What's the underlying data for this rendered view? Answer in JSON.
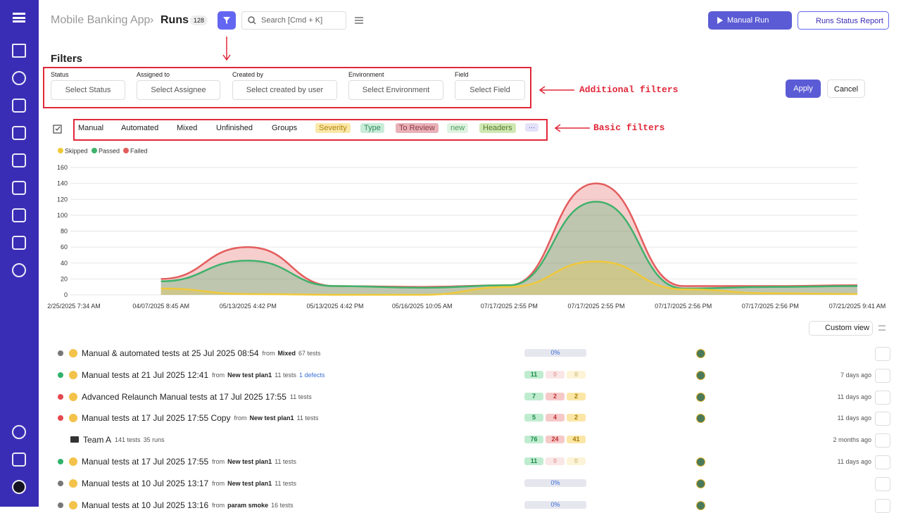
{
  "header": {
    "breadcrumb": "Mobile Banking App",
    "separator": "›",
    "page": "Runs",
    "count": 128,
    "search_placeholder": "Search [Cmd + K]",
    "manual_run": "Manual Run",
    "status_report": "Runs Status Report"
  },
  "filters": {
    "title": "Filters",
    "fields": [
      {
        "label": "Status",
        "placeholder": "Select Status"
      },
      {
        "label": "Assigned to",
        "placeholder": "Select Assignee"
      },
      {
        "label": "Created by",
        "placeholder": "Select created by user"
      },
      {
        "label": "Environment",
        "placeholder": "Select Environment"
      },
      {
        "label": "Field",
        "placeholder": "Select Field"
      }
    ],
    "apply": "Apply",
    "cancel": "Cancel"
  },
  "annotations": {
    "additional": "Additional filters",
    "basic": "Basic filters"
  },
  "basic_filters": {
    "tabs": [
      "Manual",
      "Automated",
      "Mixed",
      "Unfinished",
      "Groups"
    ],
    "tags": [
      "Severity",
      "Type",
      "To Review",
      "new",
      "Headers"
    ],
    "more": "···"
  },
  "chart_data": {
    "type": "area",
    "categories": [
      "2/25/2025 7:34 AM",
      "04/07/2025 8:45 AM",
      "05/13/2025 4:42 PM",
      "05/13/2025 4:42 PM",
      "05/16/2025 10:05 AM",
      "07/17/2025 2:55 PM",
      "07/17/2025 2:55 PM",
      "07/17/2025 2:56 PM",
      "07/17/2025 2:56 PM",
      "07/21/2025 9:41 AM"
    ],
    "series": [
      {
        "name": "Skipped",
        "color": "#f0c93a",
        "values": [
          null,
          8,
          1,
          0,
          0,
          10,
          42,
          7,
          2,
          1
        ]
      },
      {
        "name": "Passed",
        "color": "#3fb26b",
        "values": [
          null,
          17,
          43,
          11,
          9,
          12,
          117,
          8,
          10,
          11
        ]
      },
      {
        "name": "Failed",
        "color": "#e35d5d",
        "values": [
          null,
          20,
          60,
          11,
          10,
          12,
          140,
          11,
          11,
          12
        ]
      }
    ],
    "ylim": [
      0,
      160
    ],
    "yticks": [
      0,
      20,
      40,
      60,
      80,
      100,
      120,
      140,
      160
    ],
    "grid": true,
    "legend": "top-left"
  },
  "runs": {
    "custom_view": "Custom view",
    "rows": [
      {
        "title": "Manual & automated tests at 25 Jul 2025 08:54",
        "from": "from",
        "source": "Mixed",
        "tests": "67 tests",
        "progress": "0%"
      },
      {
        "title": "Manual tests at 21 Jul 2025 12:41",
        "from": "from",
        "source": "New test plan1",
        "tests": "11 tests",
        "defects": "1 defects",
        "counts": [
          11,
          0,
          0
        ],
        "time": "7 days ago"
      },
      {
        "title": "Advanced Relaunch Manual tests at 17 Jul 2025 17:55",
        "tests": "11 tests",
        "counts": [
          7,
          2,
          2
        ],
        "time": "11 days ago"
      },
      {
        "title": "Manual tests at 17 Jul 2025 17:55 Copy",
        "from": "from",
        "source": "New test plan1",
        "tests": "11 tests",
        "counts": [
          5,
          4,
          2
        ],
        "time": "11 days ago"
      },
      {
        "title": "Team A",
        "tests": "141 tests",
        "runs": "35 runs",
        "counts": [
          76,
          24,
          41
        ],
        "time": "2 months ago"
      },
      {
        "title": "Manual tests at 17 Jul 2025 17:55",
        "from": "from",
        "source": "New test plan1",
        "tests": "11 tests",
        "counts": [
          11,
          0,
          0
        ],
        "time": "11 days ago"
      },
      {
        "title": "Manual tests at 10 Jul 2025 13:17",
        "from": "from",
        "source": "New test plan1",
        "tests": "11 tests",
        "progress": "0%"
      },
      {
        "title": "Manual tests at 10 Jul 2025 13:16",
        "from": "from",
        "source": "param smoke",
        "tests": "16 tests",
        "progress": "0%"
      }
    ]
  }
}
